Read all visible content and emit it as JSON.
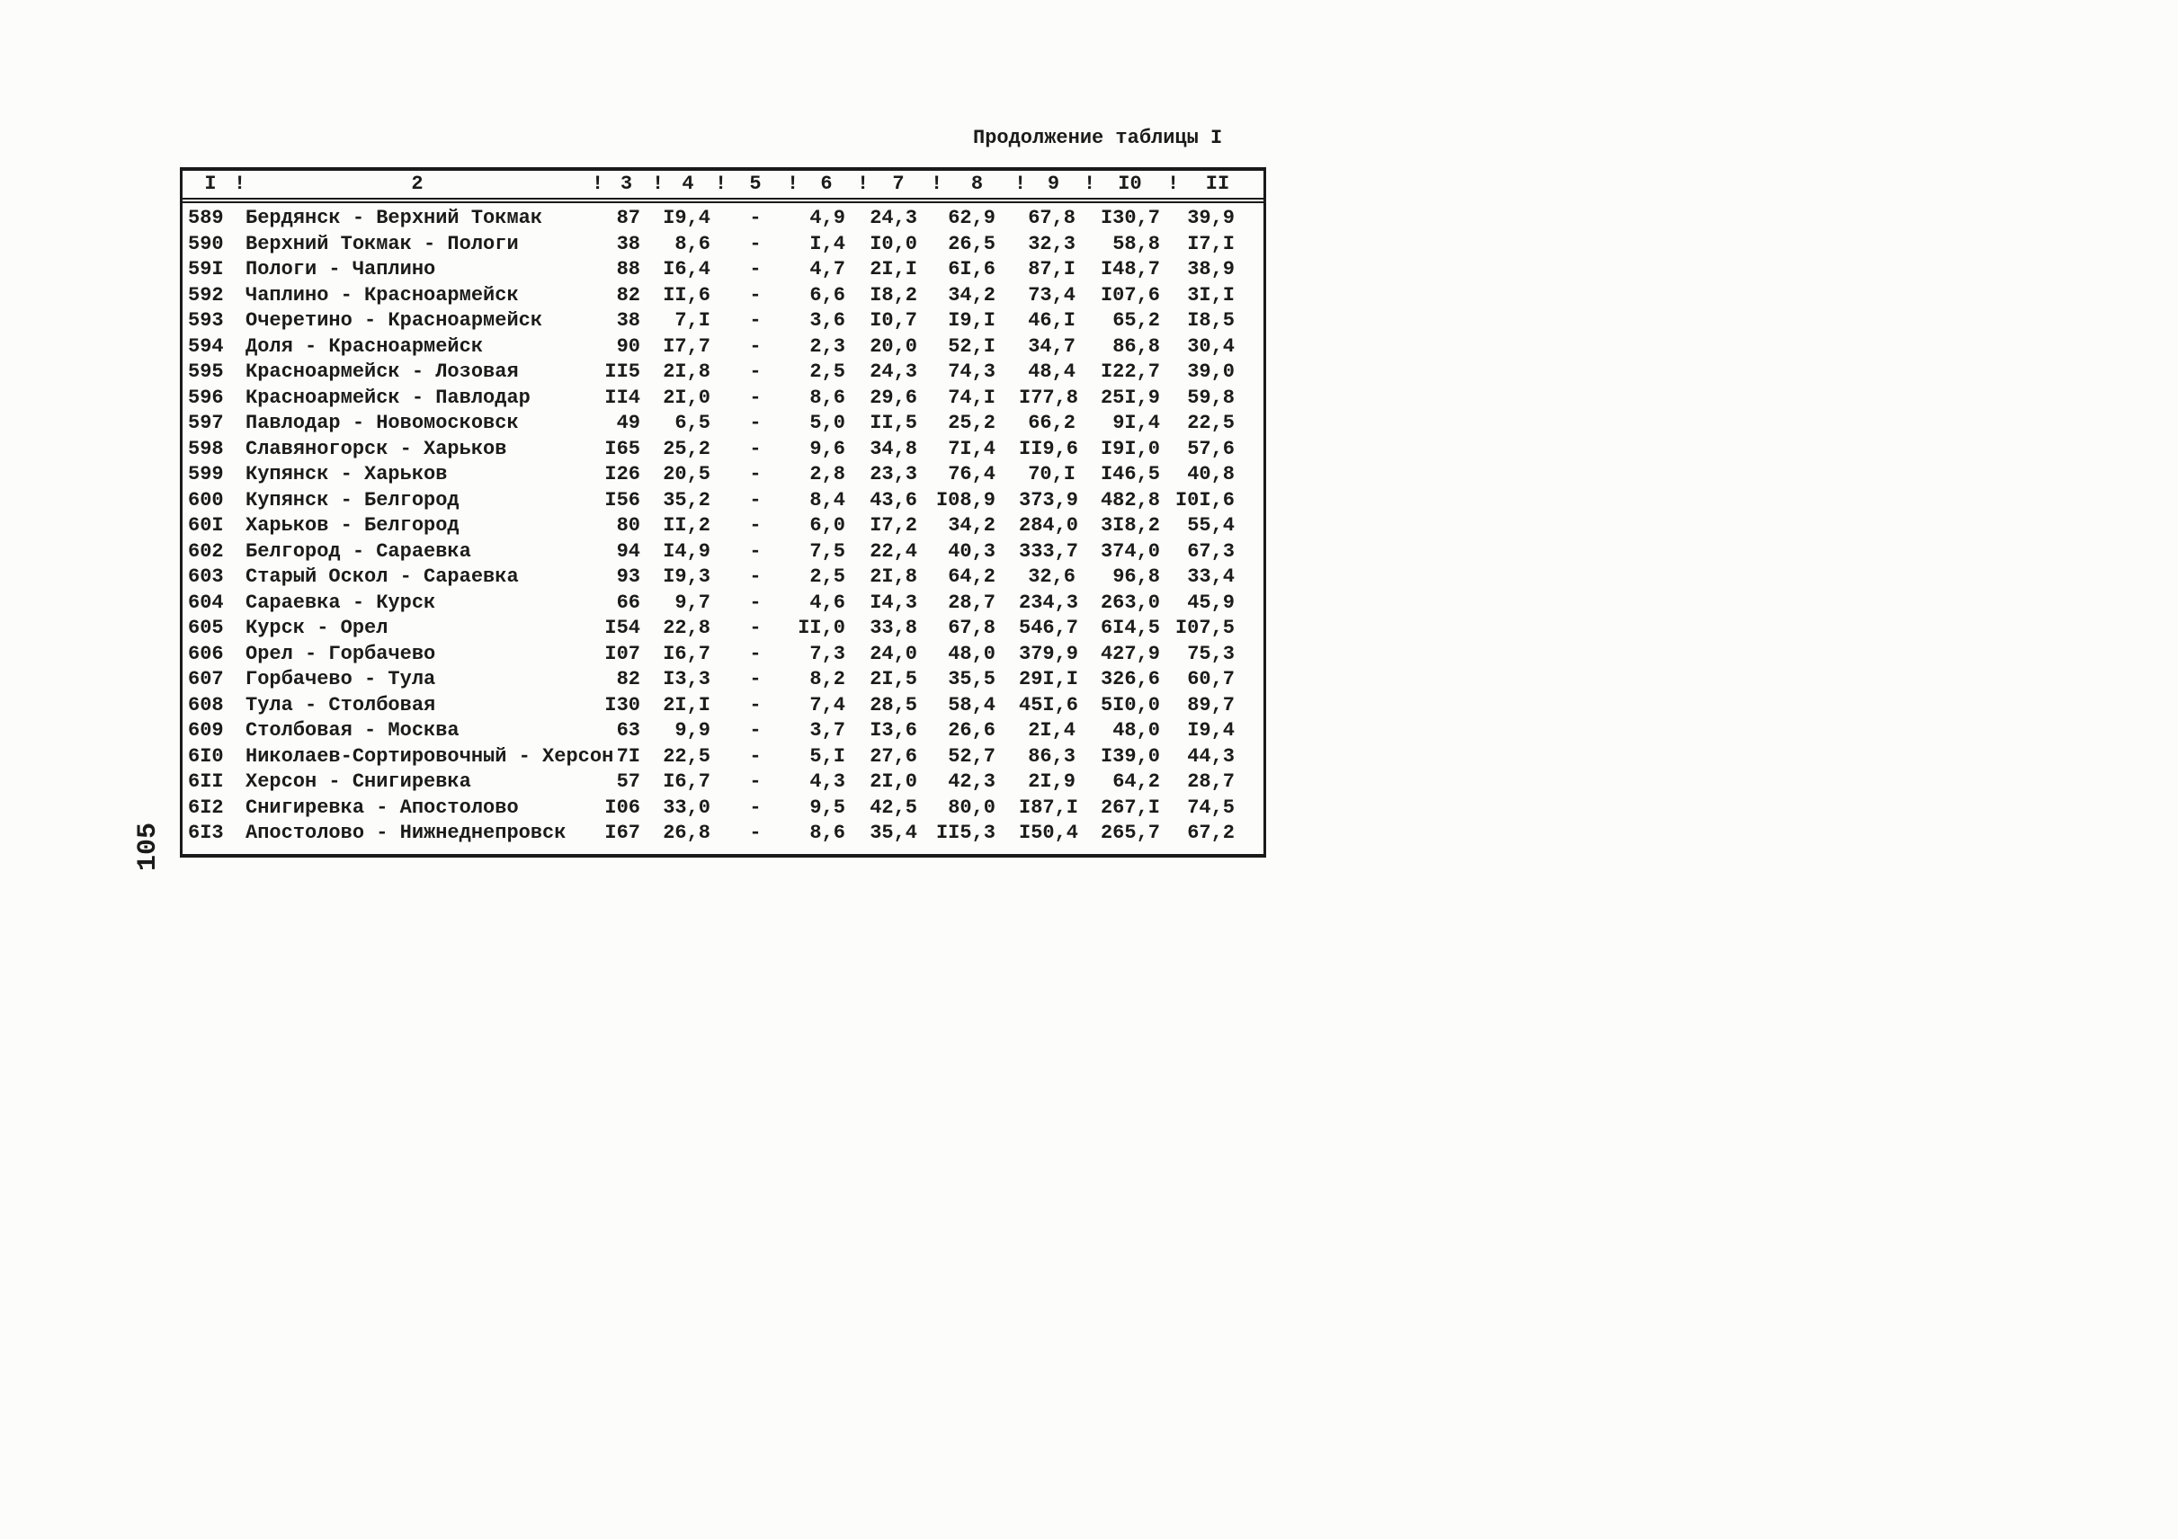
{
  "page": {
    "title": "Продолжение таблицы I",
    "page_number": "105"
  },
  "table": {
    "header": {
      "separator": "!",
      "columns": [
        "I",
        "2",
        "3",
        "4",
        "5",
        "6",
        "7",
        "8",
        "9",
        "I0",
        "II"
      ]
    },
    "rows": [
      {
        "num": "589",
        "route": "Бердянск - Верхний Токмак",
        "values": [
          "87",
          "I9,4",
          "-",
          "4,9",
          "24,3",
          "62,9",
          "67,8",
          "I30,7",
          "39,9"
        ]
      },
      {
        "num": "590",
        "route": "Верхний Токмак - Пологи",
        "values": [
          "38",
          "8,6",
          "-",
          "I,4",
          "I0,0",
          "26,5",
          "32,3",
          "58,8",
          "I7,I"
        ]
      },
      {
        "num": "59I",
        "route": "Пологи - Чаплино",
        "values": [
          "88",
          "I6,4",
          "-",
          "4,7",
          "2I,I",
          "6I,6",
          "87,I",
          "I48,7",
          "38,9"
        ]
      },
      {
        "num": "592",
        "route": "Чаплино - Красноармейск",
        "values": [
          "82",
          "II,6",
          "-",
          "6,6",
          "I8,2",
          "34,2",
          "73,4",
          "I07,6",
          "3I,I"
        ]
      },
      {
        "num": "593",
        "route": "Очеретино - Красноармейск",
        "values": [
          "38",
          "7,I",
          "-",
          "3,6",
          "I0,7",
          "I9,I",
          "46,I",
          "65,2",
          "I8,5"
        ]
      },
      {
        "num": "594",
        "route": "Доля - Красноармейск",
        "values": [
          "90",
          "I7,7",
          "-",
          "2,3",
          "20,0",
          "52,I",
          "34,7",
          "86,8",
          "30,4"
        ]
      },
      {
        "num": "595",
        "route": "Красноармейск - Лозовая",
        "values": [
          "II5",
          "2I,8",
          "-",
          "2,5",
          "24,3",
          "74,3",
          "48,4",
          "I22,7",
          "39,0"
        ]
      },
      {
        "num": "596",
        "route": "Красноармейск - Павлодар",
        "values": [
          "II4",
          "2I,0",
          "-",
          "8,6",
          "29,6",
          "74,I",
          "I77,8",
          "25I,9",
          "59,8"
        ]
      },
      {
        "num": "597",
        "route": "Павлодар - Новомосковск",
        "values": [
          "49",
          "6,5",
          "-",
          "5,0",
          "II,5",
          "25,2",
          "66,2",
          "9I,4",
          "22,5"
        ]
      },
      {
        "num": "598",
        "route": "Славяногорск - Харьков",
        "values": [
          "I65",
          "25,2",
          "-",
          "9,6",
          "34,8",
          "7I,4",
          "II9,6",
          "I9I,0",
          "57,6"
        ]
      },
      {
        "num": "599",
        "route": "Купянск - Харьков",
        "values": [
          "I26",
          "20,5",
          "-",
          "2,8",
          "23,3",
          "76,4",
          "70,I",
          "I46,5",
          "40,8"
        ]
      },
      {
        "num": "600",
        "route": "Купянск - Белгород",
        "values": [
          "I56",
          "35,2",
          "-",
          "8,4",
          "43,6",
          "I08,9",
          "373,9",
          "482,8",
          "I0I,6"
        ]
      },
      {
        "num": "60I",
        "route": "Харьков - Белгород",
        "values": [
          "80",
          "II,2",
          "-",
          "6,0",
          "I7,2",
          "34,2",
          "284,0",
          "3I8,2",
          "55,4"
        ]
      },
      {
        "num": "602",
        "route": "Белгород - Сараевка",
        "values": [
          "94",
          "I4,9",
          "-",
          "7,5",
          "22,4",
          "40,3",
          "333,7",
          "374,0",
          "67,3"
        ]
      },
      {
        "num": "603",
        "route": "Старый Оскол - Сараевка",
        "values": [
          "93",
          "I9,3",
          "-",
          "2,5",
          "2I,8",
          "64,2",
          "32,6",
          "96,8",
          "33,4"
        ]
      },
      {
        "num": "604",
        "route": "Сараевка - Курск",
        "values": [
          "66",
          "9,7",
          "-",
          "4,6",
          "I4,3",
          "28,7",
          "234,3",
          "263,0",
          "45,9"
        ]
      },
      {
        "num": "605",
        "route": "Курск - Орел",
        "values": [
          "I54",
          "22,8",
          "-",
          "II,0",
          "33,8",
          "67,8",
          "546,7",
          "6I4,5",
          "I07,5"
        ]
      },
      {
        "num": "606",
        "route": "Орел - Горбачево",
        "values": [
          "I07",
          "I6,7",
          "-",
          "7,3",
          "24,0",
          "48,0",
          "379,9",
          "427,9",
          "75,3"
        ]
      },
      {
        "num": "607",
        "route": "Горбачево - Тула",
        "values": [
          "82",
          "I3,3",
          "-",
          "8,2",
          "2I,5",
          "35,5",
          "29I,I",
          "326,6",
          "60,7"
        ]
      },
      {
        "num": "608",
        "route": "Тула - Столбовая",
        "values": [
          "I30",
          "2I,I",
          "-",
          "7,4",
          "28,5",
          "58,4",
          "45I,6",
          "5I0,0",
          "89,7"
        ]
      },
      {
        "num": "609",
        "route": "Столбовая - Москва",
        "values": [
          "63",
          "9,9",
          "-",
          "3,7",
          "I3,6",
          "26,6",
          "2I,4",
          "48,0",
          "I9,4"
        ]
      },
      {
        "num": "6I0",
        "route": "Николаев-Сортировочный - Херсон",
        "values": [
          "7I",
          "22,5",
          "-",
          "5,I",
          "27,6",
          "52,7",
          "86,3",
          "I39,0",
          "44,3"
        ]
      },
      {
        "num": "6II",
        "route": "Херсон - Снигиревка",
        "values": [
          "57",
          "I6,7",
          "-",
          "4,3",
          "2I,0",
          "42,3",
          "2I,9",
          "64,2",
          "28,7"
        ]
      },
      {
        "num": "6I2",
        "route": "Снигиревка - Апостолово",
        "values": [
          "I06",
          "33,0",
          "-",
          "9,5",
          "42,5",
          "80,0",
          "I87,I",
          "267,I",
          "74,5"
        ]
      },
      {
        "num": "6I3",
        "route": "Апостолово - Нижнеднепровск",
        "values": [
          "I67",
          "26,8",
          "-",
          "8,6",
          "35,4",
          "II5,3",
          "I50,4",
          "265,7",
          "67,2"
        ]
      }
    ]
  }
}
